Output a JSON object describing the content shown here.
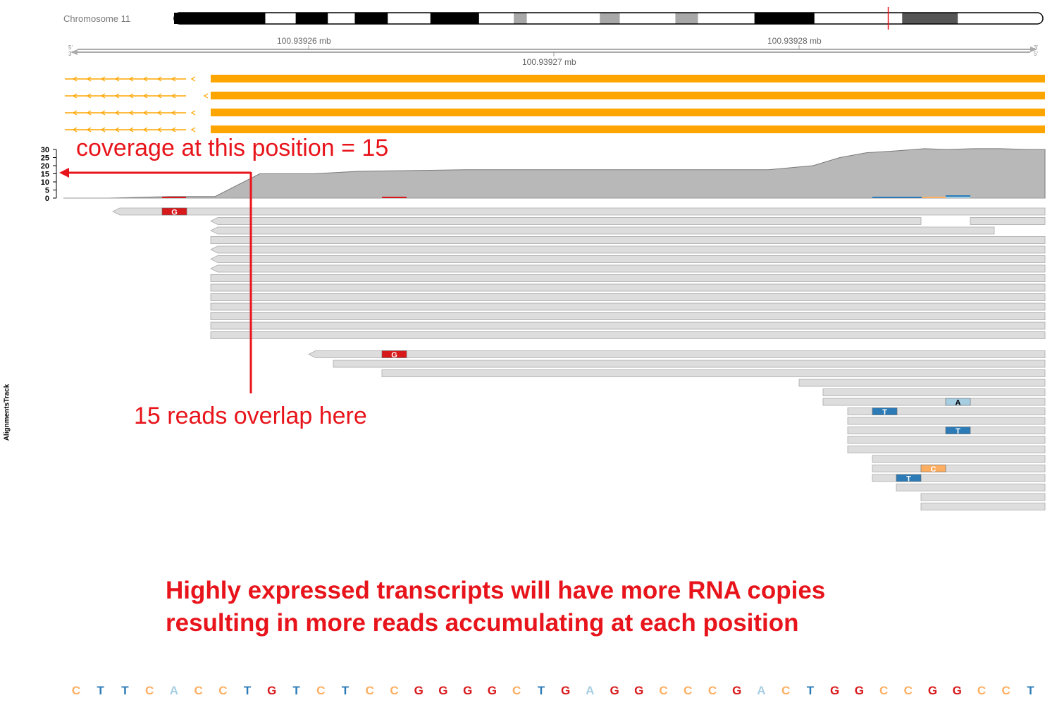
{
  "ideogram": {
    "label": "Chromosome 11",
    "bands": [
      {
        "from": 0.0,
        "to": 0.105,
        "color": "#000000"
      },
      {
        "from": 0.14,
        "to": 0.177,
        "color": "#000000"
      },
      {
        "from": 0.208,
        "to": 0.246,
        "color": "#000000"
      },
      {
        "from": 0.295,
        "to": 0.351,
        "color": "#000000"
      },
      {
        "from": 0.391,
        "to": 0.406,
        "color": "#a8a8a8"
      },
      {
        "from": 0.49,
        "to": 0.513,
        "color": "#a8a8a8"
      },
      {
        "from": 0.577,
        "to": 0.603,
        "color": "#a8a8a8"
      },
      {
        "from": 0.668,
        "to": 0.737,
        "color": "#000000"
      },
      {
        "from": 0.838,
        "to": 0.902,
        "color": "#555555"
      }
    ],
    "marker_fraction": 0.822,
    "marker_color": "#e8141b"
  },
  "axis": {
    "ticks_top": [
      "100.93926 mb",
      "100.93928 mb"
    ],
    "tick_mid": "100.93927 mb",
    "strand_left": [
      "5'",
      "3'"
    ],
    "strand_right": [
      "3'",
      "5'"
    ]
  },
  "transcripts": {
    "color": "#ffa500",
    "count": 4
  },
  "coverage": {
    "y_ticks": [
      "30",
      "25",
      "20",
      "15",
      "10",
      "5",
      "0"
    ],
    "ymax": 30,
    "profile": [
      [
        0.0,
        0
      ],
      [
        0.05,
        0
      ],
      [
        0.12,
        1
      ],
      [
        0.17,
        1
      ],
      [
        0.22,
        15
      ],
      [
        0.28,
        15
      ],
      [
        0.33,
        16.5
      ],
      [
        0.45,
        17.5
      ],
      [
        0.55,
        17.5
      ],
      [
        0.75,
        17.5
      ],
      [
        0.79,
        17.5
      ],
      [
        0.84,
        20
      ],
      [
        0.87,
        25
      ],
      [
        0.9,
        28
      ],
      [
        0.93,
        29
      ],
      [
        0.965,
        30.5
      ],
      [
        0.99,
        30
      ],
      [
        1.02,
        30.5
      ],
      [
        1.05,
        30.5
      ],
      [
        1.08,
        30
      ],
      [
        1.1,
        30
      ]
    ],
    "fill": "#b8b8b8"
  },
  "alignments": {
    "track_label": "AlignmentsTrack",
    "read_fill": "#dddddd",
    "read_stroke": "#aaaaaa"
  },
  "mismatch_colors": {
    "A": "#a6cee3",
    "C": "#fdae61",
    "G": "#d7191c",
    "T": "#2c7bb6"
  },
  "annotations": {
    "coverage_note": "coverage at this position = 15",
    "overlap_note": "15 reads overlap here",
    "arrow_color": "#e8141b"
  },
  "headline": {
    "line1": "Highly expressed transcripts will have more RNA copies",
    "line2": "resulting in more reads accumulating at each position"
  },
  "sequence": [
    "C",
    "T",
    "T",
    "C",
    "A",
    "C",
    "C",
    "T",
    "G",
    "T",
    "C",
    "T",
    "C",
    "C",
    "G",
    "G",
    "G",
    "G",
    "C",
    "T",
    "G",
    "A",
    "G",
    "G",
    "C",
    "C",
    "C",
    "G",
    "A",
    "C",
    "T",
    "G",
    "G",
    "C",
    "C",
    "G",
    "G",
    "C",
    "C",
    "T"
  ]
}
